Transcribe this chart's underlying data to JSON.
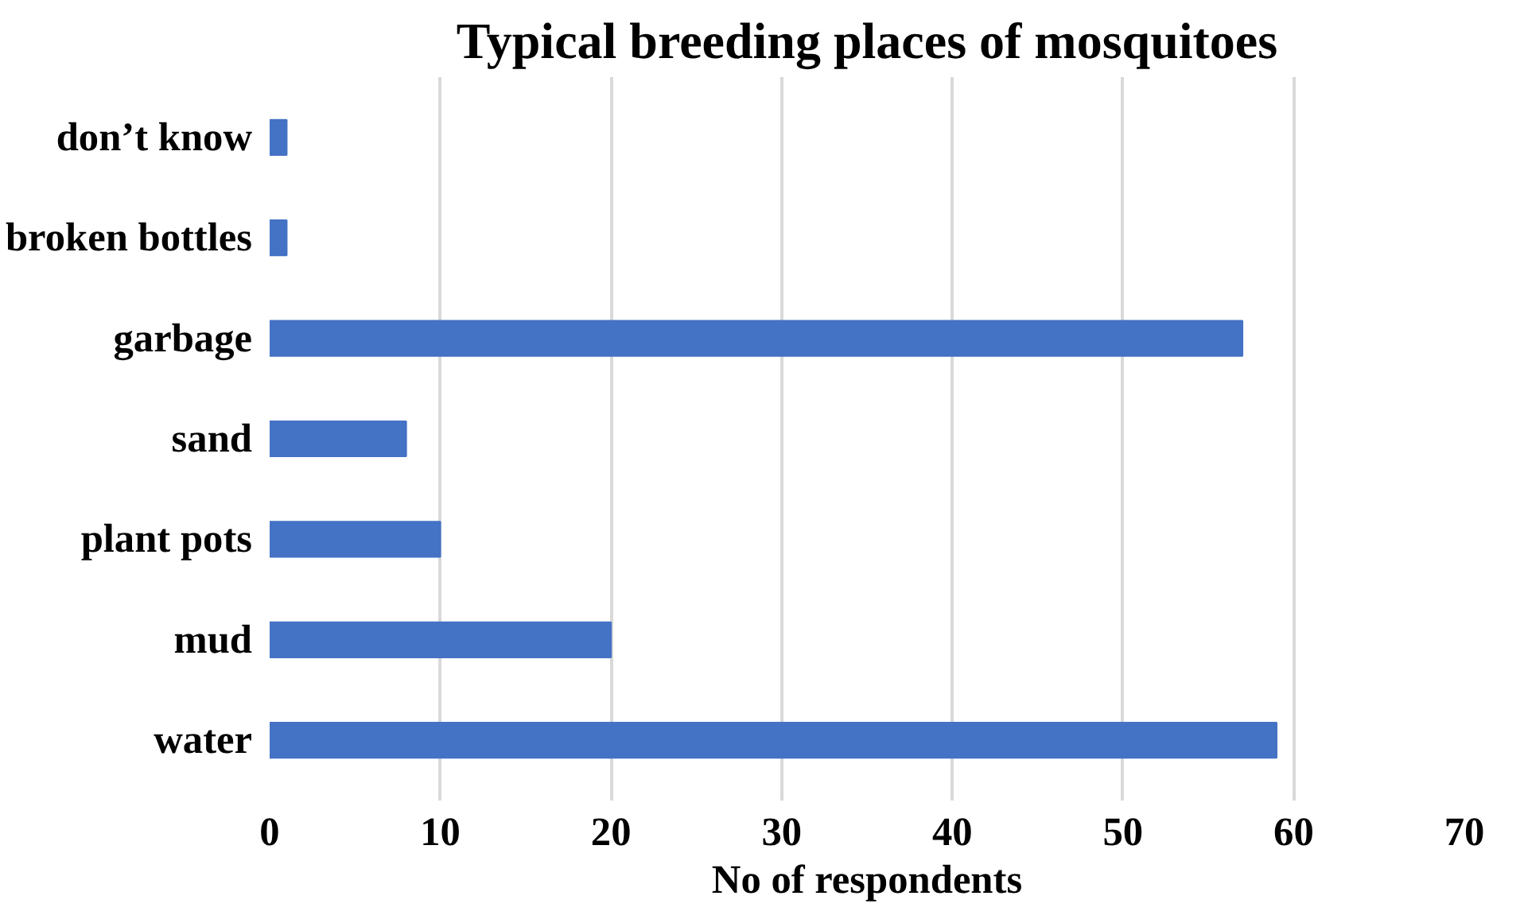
{
  "chart_data": {
    "type": "bar",
    "orientation": "horizontal",
    "title": "Typical breeding places of mosquitoes",
    "xlabel": "No of respondents",
    "categories": [
      "don’t know",
      "broken bottles",
      "garbage",
      "sand",
      "plant pots",
      "mud",
      "water"
    ],
    "values": [
      1,
      1,
      57,
      8,
      10,
      20,
      59
    ],
    "color": "#4472c4",
    "xlim": [
      0,
      70
    ],
    "xticks": [
      0,
      10,
      20,
      30,
      40,
      50,
      60,
      70
    ],
    "grid": "x"
  }
}
